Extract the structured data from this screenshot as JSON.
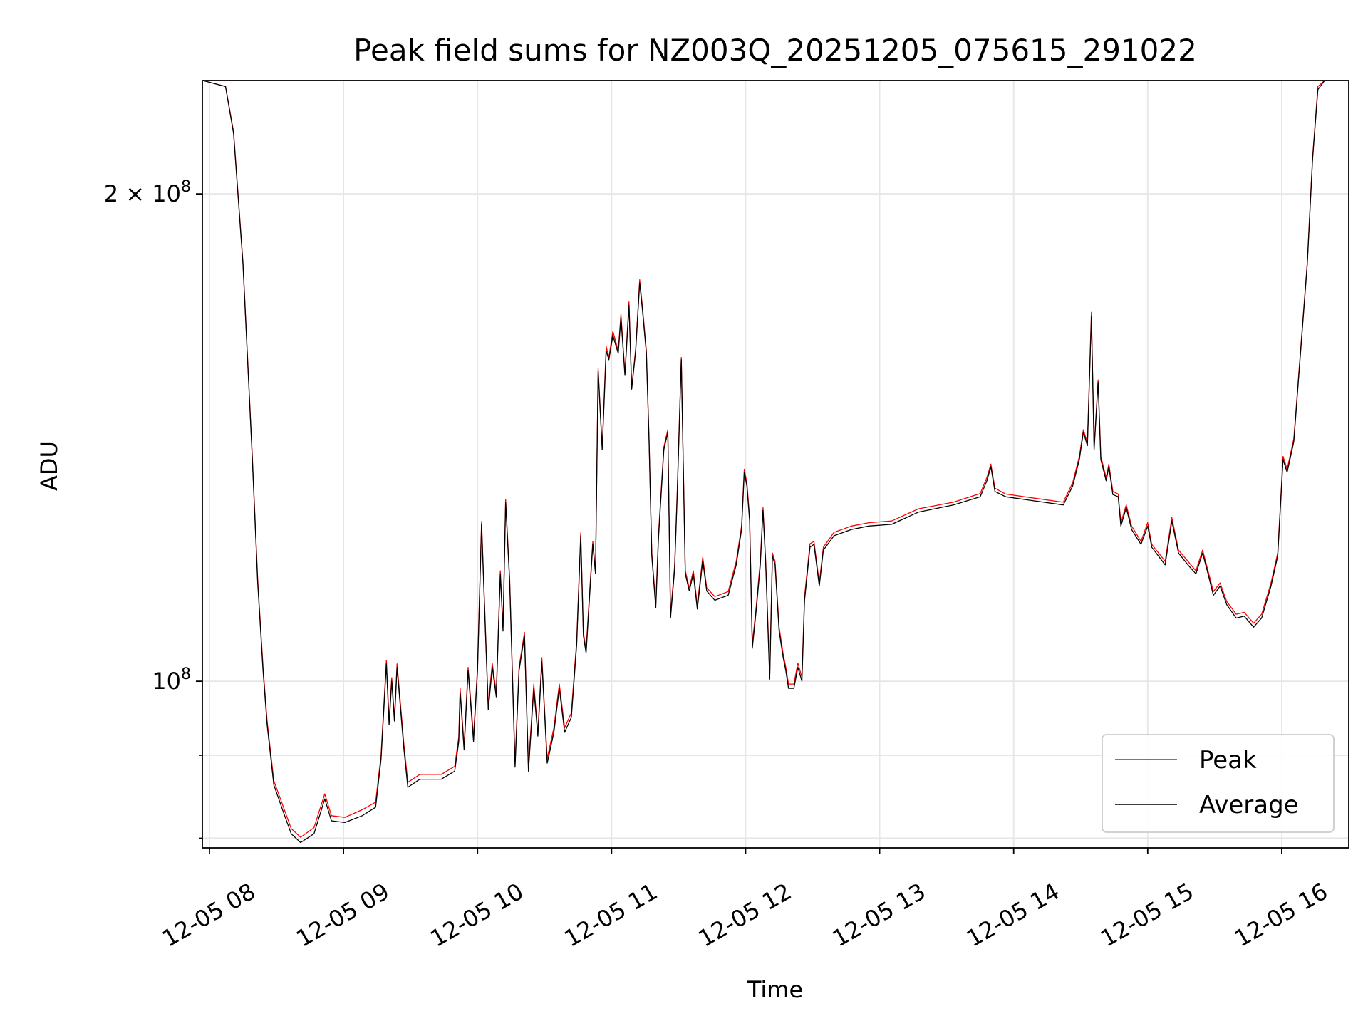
{
  "chart_data": {
    "type": "line",
    "title": "Peak field sums for NZ003Q_20251205_075615_291022",
    "xlabel": "Time",
    "ylabel": "ADU",
    "yscale": "log",
    "value_unit_multiplier": 100000000,
    "x_unit": "hours (2025-12-05)",
    "xlim": [
      7.947,
      16.5
    ],
    "ylim": [
      0.789,
      2.35
    ],
    "grid": true,
    "legend_placement": "lower-right",
    "x_ticks": [
      {
        "value": 8,
        "label": "12-05 08"
      },
      {
        "value": 9,
        "label": "12-05 09"
      },
      {
        "value": 10,
        "label": "12-05 10"
      },
      {
        "value": 11,
        "label": "12-05 11"
      },
      {
        "value": 12,
        "label": "12-05 12"
      },
      {
        "value": 13,
        "label": "12-05 13"
      },
      {
        "value": 14,
        "label": "12-05 14"
      },
      {
        "value": 15,
        "label": "12-05 15"
      },
      {
        "value": 16,
        "label": "12-05 16"
      }
    ],
    "y_major_ticks": [
      {
        "value": 1.0,
        "base": "10",
        "exp": "8"
      },
      {
        "value": 2.0,
        "base": "2 × 10",
        "exp": "8"
      }
    ],
    "y_minor_ticks": [
      0.8,
      0.9
    ],
    "series": [
      {
        "name": "Peak",
        "color": "#ff0000"
      },
      {
        "name": "Average",
        "color": "#000000"
      }
    ],
    "points_columns": [
      "time_hours",
      "peak",
      "average"
    ],
    "points": [
      [
        7.95,
        2.35,
        2.35
      ],
      [
        8.12,
        2.33,
        2.33
      ],
      [
        8.18,
        2.185,
        2.18
      ],
      [
        8.25,
        1.815,
        1.81
      ],
      [
        8.32,
        1.375,
        1.37
      ],
      [
        8.36,
        1.155,
        1.15
      ],
      [
        8.4,
        1.02,
        1.015
      ],
      [
        8.43,
        0.945,
        0.94
      ],
      [
        8.48,
        0.868,
        0.863
      ],
      [
        8.55,
        0.837,
        0.831
      ],
      [
        8.61,
        0.811,
        0.805
      ],
      [
        8.68,
        0.801,
        0.795
      ],
      [
        8.78,
        0.812,
        0.805
      ],
      [
        8.86,
        0.852,
        0.846
      ],
      [
        8.91,
        0.826,
        0.82
      ],
      [
        9.01,
        0.824,
        0.818
      ],
      [
        9.14,
        0.833,
        0.826
      ],
      [
        9.24,
        0.842,
        0.836
      ],
      [
        9.28,
        0.9,
        0.895
      ],
      [
        9.32,
        1.03,
        1.025
      ],
      [
        9.34,
        0.946,
        0.94
      ],
      [
        9.36,
        1.005,
        1.0
      ],
      [
        9.38,
        0.95,
        0.945
      ],
      [
        9.4,
        1.025,
        1.02
      ],
      [
        9.44,
        0.936,
        0.93
      ],
      [
        9.45,
        0.916,
        0.91
      ],
      [
        9.48,
        0.866,
        0.86
      ],
      [
        9.57,
        0.876,
        0.87
      ],
      [
        9.73,
        0.876,
        0.87
      ],
      [
        9.83,
        0.886,
        0.88
      ],
      [
        9.86,
        0.924,
        0.918
      ],
      [
        9.87,
        0.99,
        0.984
      ],
      [
        9.9,
        0.912,
        0.907
      ],
      [
        9.93,
        1.02,
        1.015
      ],
      [
        9.95,
        0.972,
        0.966
      ],
      [
        9.97,
        0.924,
        0.918
      ],
      [
        10.0,
        1.02,
        1.015
      ],
      [
        10.03,
        1.255,
        1.25
      ],
      [
        10.06,
        1.072,
        1.067
      ],
      [
        10.08,
        0.966,
        0.96
      ],
      [
        10.11,
        1.026,
        1.02
      ],
      [
        10.14,
        0.984,
        0.978
      ],
      [
        10.17,
        1.17,
        1.165
      ],
      [
        10.19,
        1.08,
        1.074
      ],
      [
        10.21,
        1.295,
        1.29
      ],
      [
        10.24,
        1.155,
        1.15
      ],
      [
        10.28,
        0.89,
        0.885
      ],
      [
        10.31,
        1.02,
        1.015
      ],
      [
        10.35,
        1.072,
        1.067
      ],
      [
        10.38,
        0.886,
        0.88
      ],
      [
        10.42,
        0.996,
        0.99
      ],
      [
        10.45,
        0.93,
        0.925
      ],
      [
        10.48,
        1.034,
        1.028
      ],
      [
        10.52,
        0.896,
        0.89
      ],
      [
        10.57,
        0.936,
        0.93
      ],
      [
        10.61,
        0.996,
        0.99
      ],
      [
        10.65,
        0.936,
        0.93
      ],
      [
        10.7,
        0.956,
        0.95
      ],
      [
        10.74,
        1.06,
        1.054
      ],
      [
        10.77,
        1.235,
        1.23
      ],
      [
        10.79,
        1.072,
        1.067
      ],
      [
        10.81,
        1.046,
        1.041
      ],
      [
        10.83,
        1.114,
        1.108
      ],
      [
        10.86,
        1.22,
        1.215
      ],
      [
        10.88,
        1.17,
        1.165
      ],
      [
        10.9,
        1.56,
        1.555
      ],
      [
        10.93,
        1.395,
        1.39
      ],
      [
        10.96,
        1.61,
        1.6
      ],
      [
        10.98,
        1.585,
        1.58
      ],
      [
        11.01,
        1.645,
        1.635
      ],
      [
        11.05,
        1.6,
        1.594
      ],
      [
        11.07,
        1.685,
        1.677
      ],
      [
        11.1,
        1.55,
        1.545
      ],
      [
        11.13,
        1.715,
        1.707
      ],
      [
        11.15,
        1.52,
        1.515
      ],
      [
        11.18,
        1.605,
        1.6
      ],
      [
        11.21,
        1.77,
        1.762
      ],
      [
        11.23,
        1.705,
        1.697
      ],
      [
        11.26,
        1.6,
        1.594
      ],
      [
        11.28,
        1.41,
        1.406
      ],
      [
        11.3,
        1.2,
        1.195
      ],
      [
        11.33,
        1.115,
        1.11
      ],
      [
        11.35,
        1.232,
        1.226
      ],
      [
        11.39,
        1.395,
        1.39
      ],
      [
        11.42,
        1.43,
        1.425
      ],
      [
        11.44,
        1.1,
        1.094
      ],
      [
        11.47,
        1.178,
        1.172
      ],
      [
        11.49,
        1.31,
        1.304
      ],
      [
        11.52,
        1.585,
        1.58
      ],
      [
        11.55,
        1.17,
        1.165
      ],
      [
        11.58,
        1.142,
        1.137
      ],
      [
        11.61,
        1.17,
        1.165
      ],
      [
        11.64,
        1.114,
        1.108
      ],
      [
        11.68,
        1.193,
        1.187
      ],
      [
        11.71,
        1.142,
        1.137
      ],
      [
        11.77,
        1.128,
        1.122
      ],
      [
        11.87,
        1.136,
        1.13
      ],
      [
        11.93,
        1.186,
        1.18
      ],
      [
        11.97,
        1.247,
        1.241
      ],
      [
        11.99,
        1.352,
        1.346
      ],
      [
        12.01,
        1.326,
        1.32
      ],
      [
        12.03,
        1.262,
        1.256
      ],
      [
        12.05,
        1.054,
        1.048
      ],
      [
        12.08,
        1.114,
        1.108
      ],
      [
        12.11,
        1.186,
        1.18
      ],
      [
        12.13,
        1.28,
        1.275
      ],
      [
        12.15,
        1.186,
        1.18
      ],
      [
        12.18,
        1.008,
        1.003
      ],
      [
        12.2,
        1.2,
        1.195
      ],
      [
        12.22,
        1.186,
        1.18
      ],
      [
        12.25,
        1.08,
        1.074
      ],
      [
        12.28,
        1.04,
        1.035
      ],
      [
        12.3,
        1.02,
        1.015
      ],
      [
        12.32,
        0.996,
        0.99
      ],
      [
        12.36,
        0.996,
        0.99
      ],
      [
        12.39,
        1.026,
        1.02
      ],
      [
        12.42,
        1.006,
        1.0
      ],
      [
        12.44,
        1.128,
        1.122
      ],
      [
        12.48,
        1.216,
        1.21
      ],
      [
        12.51,
        1.22,
        1.215
      ],
      [
        12.55,
        1.15,
        1.145
      ],
      [
        12.58,
        1.21,
        1.205
      ],
      [
        12.66,
        1.236,
        1.23
      ],
      [
        12.79,
        1.247,
        1.241
      ],
      [
        12.92,
        1.253,
        1.247
      ],
      [
        13.09,
        1.256,
        1.25
      ],
      [
        13.29,
        1.278,
        1.272
      ],
      [
        13.55,
        1.29,
        1.285
      ],
      [
        13.75,
        1.306,
        1.3
      ],
      [
        13.8,
        1.336,
        1.33
      ],
      [
        13.83,
        1.362,
        1.357
      ],
      [
        13.86,
        1.316,
        1.31
      ],
      [
        13.94,
        1.305,
        1.3
      ],
      [
        14.14,
        1.298,
        1.293
      ],
      [
        14.37,
        1.29,
        1.285
      ],
      [
        14.44,
        1.326,
        1.32
      ],
      [
        14.49,
        1.377,
        1.371
      ],
      [
        14.52,
        1.43,
        1.425
      ],
      [
        14.55,
        1.404,
        1.398
      ],
      [
        14.58,
        1.69,
        1.68
      ],
      [
        14.6,
        1.395,
        1.39
      ],
      [
        14.63,
        1.535,
        1.53
      ],
      [
        14.65,
        1.377,
        1.371
      ],
      [
        14.69,
        1.336,
        1.33
      ],
      [
        14.71,
        1.362,
        1.357
      ],
      [
        14.74,
        1.31,
        1.304
      ],
      [
        14.78,
        1.305,
        1.3
      ],
      [
        14.8,
        1.253,
        1.247
      ],
      [
        14.84,
        1.285,
        1.28
      ],
      [
        14.88,
        1.247,
        1.241
      ],
      [
        14.95,
        1.22,
        1.215
      ],
      [
        15.0,
        1.253,
        1.247
      ],
      [
        15.03,
        1.215,
        1.21
      ],
      [
        15.13,
        1.186,
        1.18
      ],
      [
        15.18,
        1.262,
        1.256
      ],
      [
        15.23,
        1.205,
        1.2
      ],
      [
        15.3,
        1.186,
        1.18
      ],
      [
        15.36,
        1.17,
        1.165
      ],
      [
        15.41,
        1.205,
        1.2
      ],
      [
        15.45,
        1.17,
        1.165
      ],
      [
        15.49,
        1.136,
        1.13
      ],
      [
        15.54,
        1.15,
        1.145
      ],
      [
        15.59,
        1.12,
        1.115
      ],
      [
        15.66,
        1.1,
        1.094
      ],
      [
        15.72,
        1.103,
        1.097
      ],
      [
        15.79,
        1.086,
        1.08
      ],
      [
        15.85,
        1.1,
        1.094
      ],
      [
        15.92,
        1.15,
        1.145
      ],
      [
        15.97,
        1.2,
        1.195
      ],
      [
        16.01,
        1.377,
        1.371
      ],
      [
        16.04,
        1.352,
        1.346
      ],
      [
        16.09,
        1.412,
        1.406
      ],
      [
        16.13,
        1.56,
        1.555
      ],
      [
        16.19,
        1.812,
        1.807
      ],
      [
        16.23,
        2.105,
        2.1
      ],
      [
        16.27,
        2.33,
        2.32
      ],
      [
        16.32,
        2.35,
        2.35
      ],
      [
        16.5,
        2.35,
        2.35
      ]
    ]
  }
}
